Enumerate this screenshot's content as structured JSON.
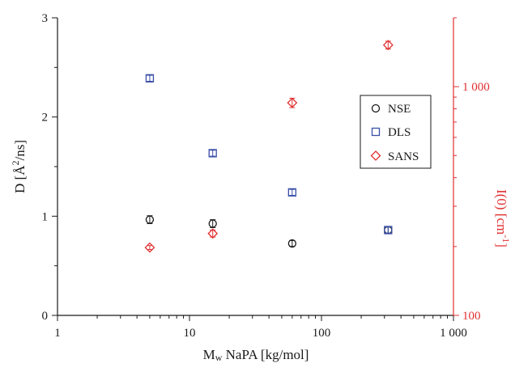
{
  "chart_data": {
    "type": "scatter",
    "x_axis": {
      "label_main": "M",
      "label_sub": "w",
      "label_rest": " NaPA [kg/mol]",
      "scale": "log",
      "range": [
        1,
        1000
      ],
      "ticks": [
        {
          "value": 1,
          "label": "1"
        },
        {
          "value": 10,
          "label": "10"
        },
        {
          "value": 100,
          "label": "100"
        },
        {
          "value": 1000,
          "label": "1 000"
        }
      ]
    },
    "y_axis_left": {
      "label_pre": "D [",
      "label_angstrom": "Å",
      "label_sup": "2",
      "label_post": "/ns]",
      "scale": "linear",
      "range": [
        0,
        3
      ],
      "ticks": [
        {
          "value": 0,
          "label": "0"
        },
        {
          "value": 1,
          "label": "1"
        },
        {
          "value": 2,
          "label": "2"
        },
        {
          "value": 3,
          "label": "3"
        }
      ]
    },
    "y_axis_right": {
      "label_pre": "I(0) [cm",
      "label_sup": "-1",
      "label_post": "]",
      "scale": "log",
      "range": [
        100,
        2000
      ],
      "color": "#e03030",
      "ticks": [
        {
          "value": 100,
          "label": "100"
        },
        {
          "value": 1000,
          "label": "1 000"
        }
      ]
    },
    "grid": false,
    "legend": {
      "placement": "center-right"
    },
    "series": [
      {
        "name": "NSE",
        "axis": "left",
        "marker": "circle",
        "color": "#1a1a1a",
        "points": [
          {
            "x": 5,
            "y": 0.965,
            "err": 0.04
          },
          {
            "x": 15,
            "y": 0.925,
            "err": 0.04
          },
          {
            "x": 60,
            "y": 0.725,
            "err": 0.03
          },
          {
            "x": 320,
            "y": 0.86,
            "err": 0.03
          }
        ]
      },
      {
        "name": "DLS",
        "axis": "left",
        "marker": "square",
        "color": "#3a4fa8",
        "points": [
          {
            "x": 5,
            "y": 2.39,
            "err": 0.03
          },
          {
            "x": 15,
            "y": 1.635,
            "err": 0.03
          },
          {
            "x": 60,
            "y": 1.24,
            "err": 0.03
          },
          {
            "x": 320,
            "y": 0.86,
            "err": 0.03
          }
        ]
      },
      {
        "name": "SANS",
        "axis": "right",
        "marker": "diamond",
        "color": "#e03030",
        "points": [
          {
            "x": 5,
            "y": 198,
            "err": 4
          },
          {
            "x": 15,
            "y": 228,
            "err": 8
          },
          {
            "x": 60,
            "y": 850,
            "err": 40
          },
          {
            "x": 320,
            "y": 1520,
            "err": 60
          }
        ]
      }
    ]
  }
}
